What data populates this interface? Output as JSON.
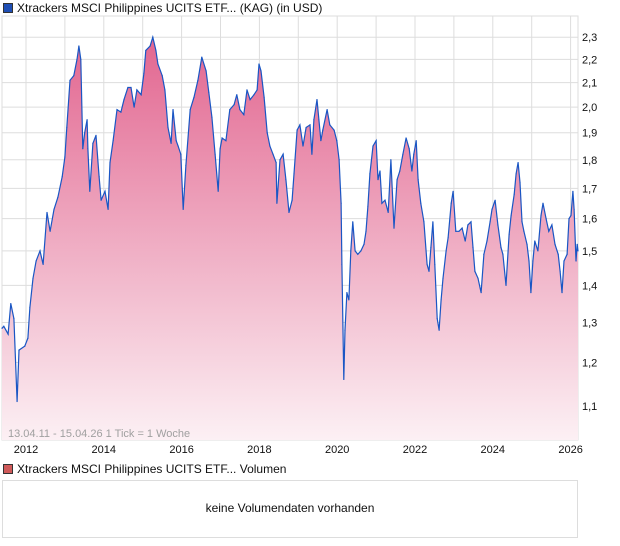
{
  "chart_data": {
    "type": "area",
    "title": "Xtrackers MSCI Philippines UCITS ETF... (KAG) (in USD)",
    "xlabel": "",
    "ylabel": "",
    "y_scale": "log",
    "ylim": [
      1.03,
      2.4
    ],
    "xlim": [
      2011.28,
      2026.29
    ],
    "y_ticks": [
      2.3,
      2.2,
      2.1,
      2.0,
      1.9,
      1.8,
      1.7,
      1.6,
      1.5,
      1.4,
      1.3,
      1.2,
      1.1
    ],
    "y_tick_labels": [
      "2,3",
      "2,2",
      "2,1",
      "2,0",
      "1,9",
      "1,8",
      "1,7",
      "1,6",
      "1,5",
      "1,4",
      "1,3",
      "1,2",
      "1,1"
    ],
    "x_ticks": [
      2012,
      2014,
      2016,
      2018,
      2020,
      2022,
      2024,
      2026
    ],
    "x_tick_labels": [
      "2012",
      "2014",
      "2016",
      "2018",
      "2020",
      "2022",
      "2024",
      "2026"
    ],
    "grid": true,
    "colors": {
      "line": "#1a56c4",
      "fill_top": "#e26690",
      "fill_bottom": "#fcf0f4"
    },
    "series": [
      {
        "name": "Xtrackers MSCI Philippines UCITS ETF",
        "points": [
          [
            2011.28,
            1.285
          ],
          [
            2011.43,
            1.29
          ],
          [
            2011.54,
            1.27
          ],
          [
            2011.61,
            1.35
          ],
          [
            2011.69,
            1.31
          ],
          [
            2011.77,
            1.11
          ],
          [
            2011.82,
            1.23
          ],
          [
            2011.97,
            1.24
          ],
          [
            2012.05,
            1.26
          ],
          [
            2012.1,
            1.34
          ],
          [
            2012.18,
            1.42
          ],
          [
            2012.26,
            1.47
          ],
          [
            2012.36,
            1.5
          ],
          [
            2012.44,
            1.46
          ],
          [
            2012.54,
            1.62
          ],
          [
            2012.62,
            1.56
          ],
          [
            2012.72,
            1.63
          ],
          [
            2012.82,
            1.67
          ],
          [
            2012.93,
            1.74
          ],
          [
            2013.0,
            1.81
          ],
          [
            2013.05,
            1.92
          ],
          [
            2013.13,
            2.11
          ],
          [
            2013.23,
            2.13
          ],
          [
            2013.31,
            2.2
          ],
          [
            2013.36,
            2.26
          ],
          [
            2013.41,
            2.2
          ],
          [
            2013.46,
            1.84
          ],
          [
            2013.51,
            1.9
          ],
          [
            2013.57,
            1.95
          ],
          [
            2013.59,
            1.84
          ],
          [
            2013.64,
            1.69
          ],
          [
            2013.72,
            1.86
          ],
          [
            2013.8,
            1.89
          ],
          [
            2013.88,
            1.74
          ],
          [
            2013.93,
            1.66
          ],
          [
            2014.03,
            1.69
          ],
          [
            2014.11,
            1.63
          ],
          [
            2014.16,
            1.79
          ],
          [
            2014.24,
            1.87
          ],
          [
            2014.34,
            1.99
          ],
          [
            2014.44,
            1.98
          ],
          [
            2014.52,
            2.03
          ],
          [
            2014.62,
            2.08
          ],
          [
            2014.7,
            2.08
          ],
          [
            2014.78,
            2.0
          ],
          [
            2014.85,
            2.07
          ],
          [
            2014.96,
            2.05
          ],
          [
            2015.03,
            2.14
          ],
          [
            2015.08,
            2.24
          ],
          [
            2015.19,
            2.26
          ],
          [
            2015.26,
            2.3
          ],
          [
            2015.34,
            2.24
          ],
          [
            2015.39,
            2.18
          ],
          [
            2015.5,
            2.13
          ],
          [
            2015.57,
            2.07
          ],
          [
            2015.65,
            1.92
          ],
          [
            2015.73,
            1.86
          ],
          [
            2015.78,
            1.99
          ],
          [
            2015.86,
            1.87
          ],
          [
            2015.91,
            1.85
          ],
          [
            2015.98,
            1.82
          ],
          [
            2016.04,
            1.63
          ],
          [
            2016.11,
            1.78
          ],
          [
            2016.22,
            1.99
          ],
          [
            2016.32,
            2.04
          ],
          [
            2016.42,
            2.11
          ],
          [
            2016.52,
            2.21
          ],
          [
            2016.63,
            2.15
          ],
          [
            2016.7,
            2.06
          ],
          [
            2016.78,
            1.96
          ],
          [
            2016.86,
            1.82
          ],
          [
            2016.94,
            1.69
          ],
          [
            2016.99,
            1.84
          ],
          [
            2017.04,
            1.88
          ],
          [
            2017.14,
            1.87
          ],
          [
            2017.24,
            1.99
          ],
          [
            2017.35,
            2.01
          ],
          [
            2017.42,
            2.05
          ],
          [
            2017.5,
            1.99
          ],
          [
            2017.6,
            1.97
          ],
          [
            2017.68,
            2.07
          ],
          [
            2017.76,
            2.03
          ],
          [
            2017.86,
            2.05
          ],
          [
            2017.94,
            2.07
          ],
          [
            2017.99,
            2.18
          ],
          [
            2018.04,
            2.15
          ],
          [
            2018.12,
            2.04
          ],
          [
            2018.2,
            1.9
          ],
          [
            2018.27,
            1.85
          ],
          [
            2018.35,
            1.82
          ],
          [
            2018.43,
            1.79
          ],
          [
            2018.45,
            1.65
          ],
          [
            2018.53,
            1.8
          ],
          [
            2018.61,
            1.82
          ],
          [
            2018.68,
            1.73
          ],
          [
            2018.76,
            1.62
          ],
          [
            2018.84,
            1.66
          ],
          [
            2018.89,
            1.75
          ],
          [
            2018.97,
            1.91
          ],
          [
            2019.04,
            1.93
          ],
          [
            2019.12,
            1.85
          ],
          [
            2019.2,
            1.92
          ],
          [
            2019.3,
            1.93
          ],
          [
            2019.35,
            1.82
          ],
          [
            2019.4,
            1.95
          ],
          [
            2019.48,
            2.03
          ],
          [
            2019.53,
            1.95
          ],
          [
            2019.58,
            1.87
          ],
          [
            2019.63,
            1.91
          ],
          [
            2019.74,
            1.99
          ],
          [
            2019.81,
            1.93
          ],
          [
            2019.92,
            1.91
          ],
          [
            2019.99,
            1.87
          ],
          [
            2020.05,
            1.8
          ],
          [
            2020.1,
            1.65
          ],
          [
            2020.12,
            1.46
          ],
          [
            2020.17,
            1.16
          ],
          [
            2020.2,
            1.28
          ],
          [
            2020.25,
            1.38
          ],
          [
            2020.3,
            1.36
          ],
          [
            2020.35,
            1.5
          ],
          [
            2020.4,
            1.59
          ],
          [
            2020.46,
            1.5
          ],
          [
            2020.53,
            1.49
          ],
          [
            2020.61,
            1.5
          ],
          [
            2020.69,
            1.52
          ],
          [
            2020.74,
            1.56
          ],
          [
            2020.79,
            1.64
          ],
          [
            2020.84,
            1.75
          ],
          [
            2020.92,
            1.85
          ],
          [
            2021.0,
            1.87
          ],
          [
            2021.05,
            1.73
          ],
          [
            2021.1,
            1.76
          ],
          [
            2021.15,
            1.65
          ],
          [
            2021.23,
            1.66
          ],
          [
            2021.31,
            1.62
          ],
          [
            2021.38,
            1.8
          ],
          [
            2021.46,
            1.57
          ],
          [
            2021.54,
            1.73
          ],
          [
            2021.61,
            1.76
          ],
          [
            2021.69,
            1.82
          ],
          [
            2021.77,
            1.88
          ],
          [
            2021.85,
            1.84
          ],
          [
            2021.92,
            1.76
          ],
          [
            2021.97,
            1.82
          ],
          [
            2022.03,
            1.87
          ],
          [
            2022.08,
            1.73
          ],
          [
            2022.15,
            1.65
          ],
          [
            2022.23,
            1.59
          ],
          [
            2022.31,
            1.46
          ],
          [
            2022.36,
            1.44
          ],
          [
            2022.41,
            1.51
          ],
          [
            2022.46,
            1.59
          ],
          [
            2022.51,
            1.46
          ],
          [
            2022.57,
            1.31
          ],
          [
            2022.62,
            1.28
          ],
          [
            2022.67,
            1.36
          ],
          [
            2022.72,
            1.42
          ],
          [
            2022.8,
            1.5
          ],
          [
            2022.85,
            1.54
          ],
          [
            2022.93,
            1.65
          ],
          [
            2022.98,
            1.69
          ],
          [
            2023.05,
            1.56
          ],
          [
            2023.13,
            1.56
          ],
          [
            2023.21,
            1.57
          ],
          [
            2023.29,
            1.53
          ],
          [
            2023.36,
            1.58
          ],
          [
            2023.44,
            1.59
          ],
          [
            2023.49,
            1.51
          ],
          [
            2023.54,
            1.44
          ],
          [
            2023.62,
            1.42
          ],
          [
            2023.7,
            1.38
          ],
          [
            2023.77,
            1.49
          ],
          [
            2023.85,
            1.53
          ],
          [
            2023.93,
            1.59
          ],
          [
            2023.98,
            1.63
          ],
          [
            2024.06,
            1.66
          ],
          [
            2024.13,
            1.58
          ],
          [
            2024.21,
            1.51
          ],
          [
            2024.26,
            1.49
          ],
          [
            2024.34,
            1.4
          ],
          [
            2024.42,
            1.55
          ],
          [
            2024.47,
            1.61
          ],
          [
            2024.55,
            1.68
          ],
          [
            2024.6,
            1.75
          ],
          [
            2024.65,
            1.79
          ],
          [
            2024.7,
            1.72
          ],
          [
            2024.75,
            1.59
          ],
          [
            2024.8,
            1.56
          ],
          [
            2024.88,
            1.52
          ],
          [
            2024.93,
            1.47
          ],
          [
            2024.98,
            1.38
          ],
          [
            2025.03,
            1.47
          ],
          [
            2025.08,
            1.53
          ],
          [
            2025.16,
            1.5
          ],
          [
            2025.24,
            1.61
          ],
          [
            2025.29,
            1.65
          ],
          [
            2025.37,
            1.6
          ],
          [
            2025.44,
            1.56
          ],
          [
            2025.52,
            1.58
          ],
          [
            2025.6,
            1.52
          ],
          [
            2025.68,
            1.49
          ],
          [
            2025.73,
            1.44
          ],
          [
            2025.78,
            1.38
          ],
          [
            2025.83,
            1.47
          ],
          [
            2025.91,
            1.49
          ],
          [
            2025.96,
            1.6
          ],
          [
            2026.01,
            1.61
          ],
          [
            2026.06,
            1.69
          ],
          [
            2026.09,
            1.63
          ],
          [
            2026.14,
            1.47
          ],
          [
            2026.17,
            1.52
          ],
          [
            2026.29,
            1.5
          ]
        ]
      }
    ],
    "annotation": "13.04.11 - 15.04.26   1 Tick = 1 Woche",
    "legend_color": "#1f4fb5"
  },
  "volume": {
    "title": "Xtrackers MSCI Philippines UCITS ETF... Volumen",
    "legend_color": "#d05a5a",
    "message": "keine Volumendaten vorhanden"
  }
}
